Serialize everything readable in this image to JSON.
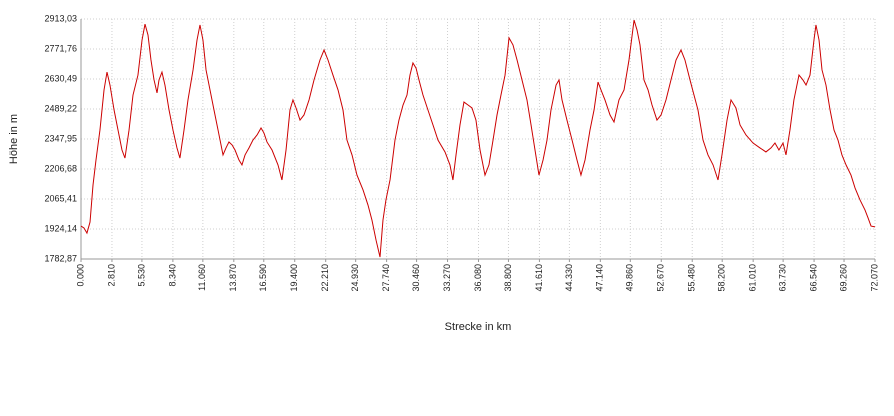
{
  "chart_data": {
    "type": "line",
    "xlabel": "Strecke  in  km",
    "ylabel": "Höhe  in  m",
    "grid": true,
    "xlim": [
      0,
      72.07
    ],
    "ylim": [
      1782.87,
      2913.03
    ],
    "xticks": [
      {
        "value": 0,
        "label": "0.000"
      },
      {
        "value": 2.81,
        "label": "2.810"
      },
      {
        "value": 5.53,
        "label": "5.530"
      },
      {
        "value": 8.34,
        "label": "8.340"
      },
      {
        "value": 11.06,
        "label": "11.060"
      },
      {
        "value": 13.87,
        "label": "13.870"
      },
      {
        "value": 16.59,
        "label": "16.590"
      },
      {
        "value": 19.4,
        "label": "19.400"
      },
      {
        "value": 22.21,
        "label": "22.210"
      },
      {
        "value": 24.93,
        "label": "24.930"
      },
      {
        "value": 27.74,
        "label": "27.740"
      },
      {
        "value": 30.46,
        "label": "30.460"
      },
      {
        "value": 33.27,
        "label": "33.270"
      },
      {
        "value": 36.08,
        "label": "36.080"
      },
      {
        "value": 38.8,
        "label": "38.800"
      },
      {
        "value": 41.61,
        "label": "41.610"
      },
      {
        "value": 44.33,
        "label": "44.330"
      },
      {
        "value": 47.14,
        "label": "47.140"
      },
      {
        "value": 49.86,
        "label": "49.860"
      },
      {
        "value": 52.67,
        "label": "52.670"
      },
      {
        "value": 55.48,
        "label": "55.480"
      },
      {
        "value": 58.2,
        "label": "58.200"
      },
      {
        "value": 61.01,
        "label": "61.010"
      },
      {
        "value": 63.73,
        "label": "63.730"
      },
      {
        "value": 66.54,
        "label": "66.540"
      },
      {
        "value": 69.26,
        "label": "69.260"
      },
      {
        "value": 72.07,
        "label": "72.070"
      }
    ],
    "yticks": [
      {
        "value": 1782.87,
        "label": "1782,87"
      },
      {
        "value": 1924.14,
        "label": "1924,14"
      },
      {
        "value": 2065.41,
        "label": "2065,41"
      },
      {
        "value": 2206.68,
        "label": "2206,68"
      },
      {
        "value": 2347.95,
        "label": "2347,95"
      },
      {
        "value": 2489.22,
        "label": "2489,22"
      },
      {
        "value": 2630.49,
        "label": "2630,49"
      },
      {
        "value": 2771.76,
        "label": "2771,76"
      },
      {
        "value": 2913.03,
        "label": "2913,03"
      }
    ],
    "series": [
      {
        "color": "#cc0000",
        "x": [
          0,
          0.27,
          0.54,
          0.82,
          1.09,
          1.36,
          1.72,
          2.09,
          2.36,
          2.63,
          3.0,
          3.36,
          3.72,
          3.99,
          4.36,
          4.72,
          5.17,
          5.54,
          5.81,
          6.08,
          6.35,
          6.63,
          6.9,
          7.08,
          7.35,
          7.62,
          7.99,
          8.35,
          8.71,
          8.98,
          9.35,
          9.71,
          10.17,
          10.53,
          10.8,
          11.07,
          11.35,
          11.71,
          12.07,
          12.44,
          12.71,
          12.89,
          13.16,
          13.43,
          13.71,
          13.98,
          14.34,
          14.61,
          14.89,
          15.25,
          15.61,
          15.98,
          16.34,
          16.61,
          16.88,
          17.34,
          17.88,
          18.24,
          18.61,
          18.97,
          19.24,
          19.52,
          19.88,
          20.24,
          20.7,
          21.15,
          21.69,
          22.06,
          22.42,
          22.87,
          23.33,
          23.78,
          24.14,
          24.6,
          25.05,
          25.6,
          26.05,
          26.41,
          26.78,
          27.14,
          27.41,
          27.68,
          28.05,
          28.5,
          28.86,
          29.23,
          29.59,
          29.86,
          30.13,
          30.41,
          30.68,
          31.04,
          31.49,
          31.95,
          32.4,
          33.04,
          33.49,
          33.76,
          34.04,
          34.4,
          34.76,
          35.13,
          35.49,
          35.85,
          36.22,
          36.67,
          37.03,
          37.4,
          37.76,
          38.12,
          38.49,
          38.85,
          39.21,
          39.58,
          40.03,
          40.48,
          40.85,
          41.21,
          41.57,
          41.94,
          42.3,
          42.66,
          43.12,
          43.39,
          43.66,
          44.11,
          44.57,
          45.02,
          45.38,
          45.75,
          46.2,
          46.57,
          46.93,
          47.2,
          47.56,
          48.02,
          48.38,
          48.83,
          49.29,
          49.74,
          50.2,
          50.47,
          50.74,
          51.1,
          51.47,
          51.83,
          52.28,
          52.65,
          53.1,
          53.55,
          54.01,
          54.46,
          54.82,
          55.28,
          55.64,
          56.0,
          56.46,
          56.91,
          57.37,
          57.82,
          58.18,
          58.64,
          59.0,
          59.45,
          59.82,
          60.36,
          61.0,
          61.63,
          62.17,
          62.63,
          62.99,
          63.35,
          63.72,
          63.99,
          64.35,
          64.71,
          65.17,
          65.53,
          65.81,
          66.17,
          66.53,
          66.71,
          66.99,
          67.26,
          67.62,
          67.99,
          68.35,
          68.71,
          69.07,
          69.44,
          69.89,
          70.26,
          70.71,
          71.16,
          71.44,
          71.71,
          72.07
        ],
        "values": [
          1938,
          1929,
          1905,
          1957,
          2131,
          2249,
          2390,
          2579,
          2663,
          2602,
          2485,
          2390,
          2296,
          2258,
          2390,
          2555,
          2649,
          2814,
          2889,
          2838,
          2720,
          2626,
          2565,
          2626,
          2663,
          2602,
          2485,
          2390,
          2306,
          2258,
          2390,
          2532,
          2673,
          2814,
          2885,
          2814,
          2673,
          2579,
          2485,
          2390,
          2320,
          2273,
          2306,
          2334,
          2320,
          2296,
          2249,
          2226,
          2273,
          2306,
          2343,
          2367,
          2400,
          2376,
          2334,
          2296,
          2226,
          2155,
          2296,
          2485,
          2532,
          2494,
          2437,
          2461,
          2532,
          2626,
          2720,
          2767,
          2720,
          2649,
          2579,
          2485,
          2343,
          2273,
          2178,
          2108,
          2037,
          1966,
          1872,
          1792,
          1966,
          2061,
          2155,
          2343,
          2437,
          2508,
          2555,
          2649,
          2706,
          2682,
          2626,
          2555,
          2485,
          2414,
          2343,
          2287,
          2226,
          2155,
          2273,
          2414,
          2522,
          2508,
          2494,
          2437,
          2296,
          2178,
          2226,
          2343,
          2461,
          2555,
          2649,
          2824,
          2791,
          2720,
          2626,
          2532,
          2414,
          2296,
          2178,
          2249,
          2343,
          2485,
          2602,
          2626,
          2532,
          2437,
          2343,
          2249,
          2178,
          2249,
          2390,
          2485,
          2616,
          2579,
          2532,
          2461,
          2428,
          2532,
          2579,
          2720,
          2908,
          2861,
          2791,
          2626,
          2579,
          2508,
          2437,
          2461,
          2532,
          2626,
          2720,
          2767,
          2720,
          2626,
          2555,
          2485,
          2343,
          2273,
          2226,
          2155,
          2273,
          2437,
          2532,
          2494,
          2414,
          2367,
          2329,
          2306,
          2287,
          2306,
          2329,
          2296,
          2329,
          2273,
          2390,
          2532,
          2649,
          2626,
          2602,
          2649,
          2814,
          2885,
          2814,
          2673,
          2602,
          2485,
          2390,
          2343,
          2273,
          2226,
          2178,
          2117,
          2061,
          2014,
          1976,
          1938,
          1934
        ]
      }
    ]
  }
}
